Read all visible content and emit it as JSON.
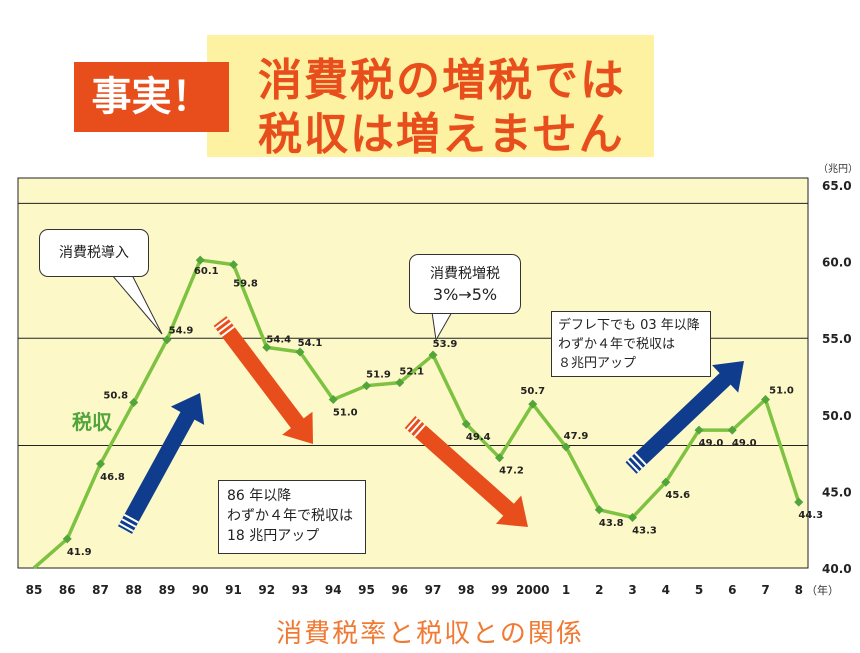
{
  "headline": {
    "badge": "事実！",
    "line1": "消費税の増税では",
    "line2": "税収は増えません"
  },
  "caption": "消費税率と税収との関係",
  "colors": {
    "line": "#7dc241",
    "marker": "#52a53a",
    "plot_bg": "#fdf8c8",
    "accent": "#e84e1b",
    "arrow_red": "#e84e1b",
    "arrow_blue": "#0f3c8c",
    "headline_bg": "#fdf1a2",
    "caption": "#f07a33"
  },
  "callouts": {
    "intro": "消費税導入",
    "hike_line1": "消費税増税",
    "hike_line2": "3%→5%",
    "deflation_1": "デフレ下でも 03 年以降",
    "deflation_2": "わずか４年で税収は",
    "deflation_3": "８兆円アップ",
    "growth_1": "86 年以降",
    "growth_2": "わずか４年で税収は",
    "growth_3": "18 兆円アップ"
  },
  "chart_data": {
    "type": "line",
    "series_label": "税収",
    "categories": [
      "85",
      "86",
      "87",
      "88",
      "89",
      "90",
      "91",
      "92",
      "93",
      "94",
      "95",
      "96",
      "97",
      "98",
      "99",
      "2000",
      "1",
      "2",
      "3",
      "4",
      "5",
      "6",
      "7",
      "8"
    ],
    "x_unit": "（年）",
    "y_unit": "（兆円）",
    "ylim": [
      40,
      65
    ],
    "y_ticks": [
      "65.0",
      "60.0",
      "55.0",
      "50.0",
      "45.0",
      "40.0"
    ],
    "values": [
      40.0,
      41.9,
      46.8,
      50.8,
      54.9,
      60.1,
      59.8,
      54.4,
      54.1,
      51.0,
      51.9,
      52.1,
      53.9,
      49.4,
      47.2,
      50.7,
      47.9,
      43.8,
      43.3,
      45.6,
      49.0,
      49.0,
      51.0,
      44.3
    ],
    "point_labels": [
      "",
      "41.9",
      "46.8",
      "50.8",
      "54.9",
      "60.1",
      "59.8",
      "54.4",
      "54.1",
      "51.0",
      "51.9",
      "52.1",
      "53.9",
      "49.4",
      "47.2",
      "50.7",
      "47.9",
      "43.8",
      "43.3",
      "45.6",
      "49.0",
      "49.0",
      "51.0",
      "44.3"
    ],
    "gridlines": [
      63.8,
      55.0,
      48.0
    ]
  }
}
